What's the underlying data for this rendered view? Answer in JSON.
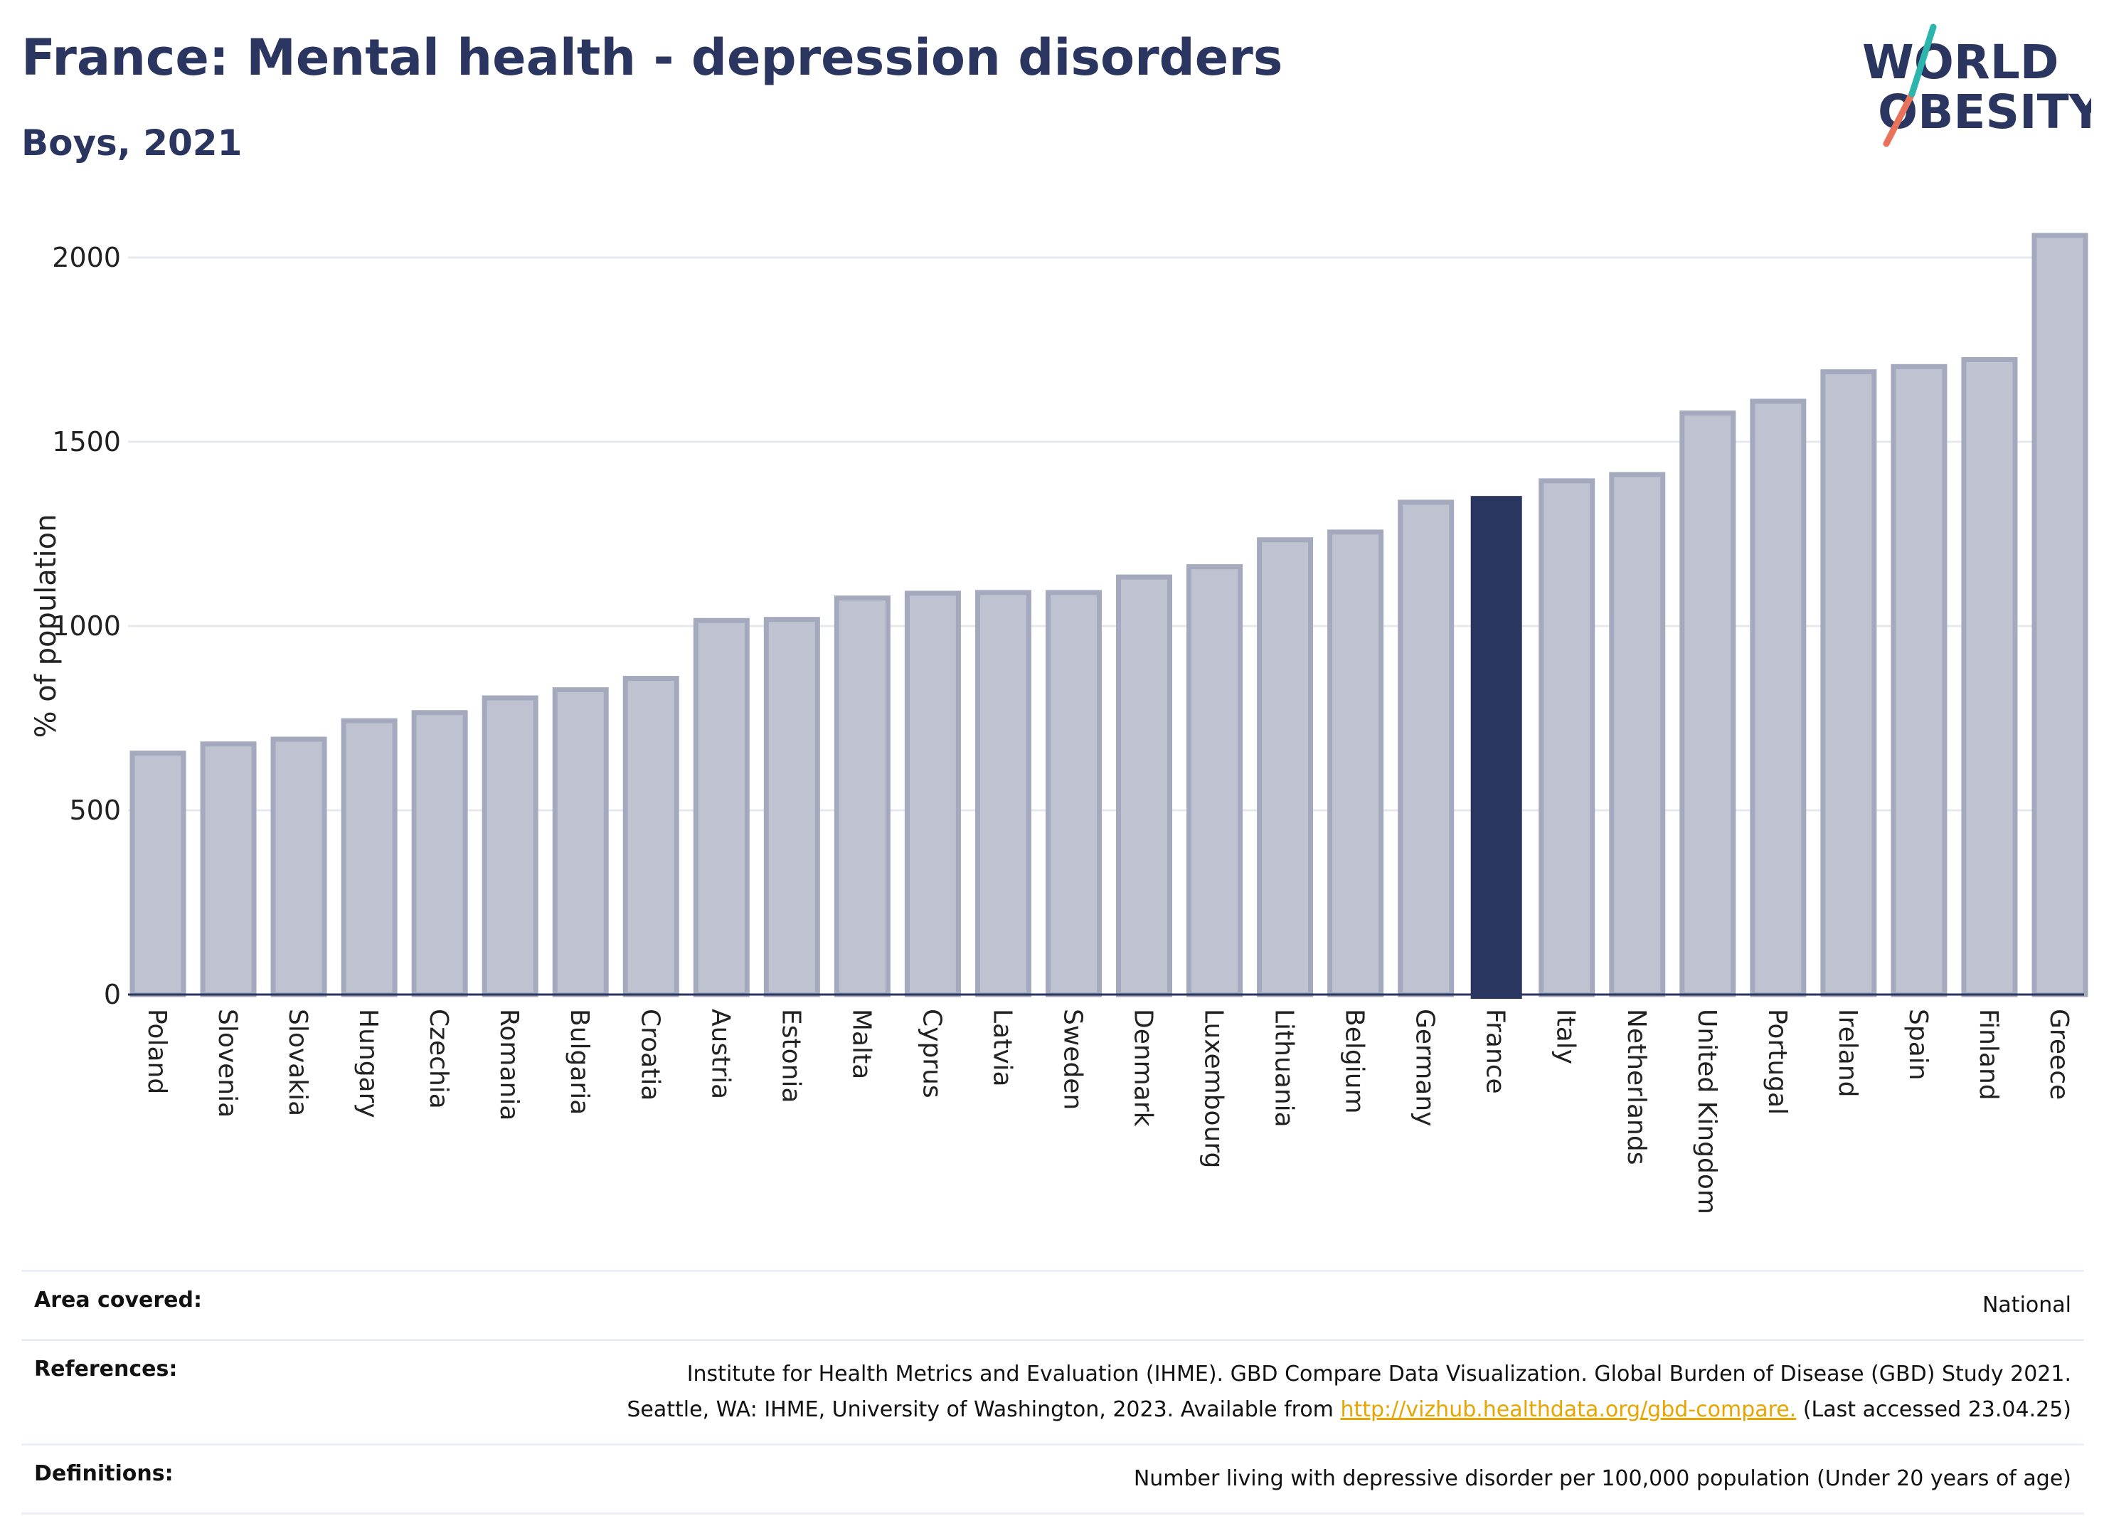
{
  "header": {
    "title": "France: Mental health - depression disorders",
    "subtitle": "Boys, 2021"
  },
  "logo": {
    "line1": "WORLD",
    "line2": "OBESITY"
  },
  "chart_data": {
    "type": "bar",
    "title": "France: Mental health - depression disorders",
    "subtitle": "Boys, 2021",
    "ylabel": "% of population",
    "xlabel": "",
    "ylim": [
      0,
      2100
    ],
    "yticks": [
      0,
      500,
      1000,
      1500,
      2000
    ],
    "grid": true,
    "highlight": "France",
    "colors": {
      "bar": "#bfc3d1",
      "bar_edge": "#a4a9be",
      "highlight": "#2a3560",
      "axis": "#2a3560",
      "grid": "#e6e8ef"
    },
    "categories": [
      "Poland",
      "Slovenia",
      "Slovakia",
      "Hungary",
      "Czechia",
      "Romania",
      "Bulgaria",
      "Croatia",
      "Austria",
      "Estonia",
      "Malta",
      "Cyprus",
      "Latvia",
      "Sweden",
      "Denmark",
      "Luxembourg",
      "Lithuania",
      "Belgium",
      "Germany",
      "France",
      "Italy",
      "Netherlands",
      "United Kingdom",
      "Portugal",
      "Ireland",
      "Spain",
      "Finland",
      "Greece"
    ],
    "values": [
      655,
      680,
      693,
      743,
      765,
      805,
      827,
      858,
      1015,
      1018,
      1076,
      1089,
      1091,
      1091,
      1133,
      1161,
      1234,
      1255,
      1336,
      1353,
      1394,
      1411,
      1578,
      1610,
      1690,
      1704,
      1723,
      2060
    ]
  },
  "footer": {
    "area_label": "Area covered:",
    "area_value": "National",
    "references_label": "References:",
    "references_line1": "Institute for Health Metrics and Evaluation (IHME). GBD Compare Data Visualization. Global Burden of Disease (GBD) Study 2021.",
    "references_line2_pre": "Seattle, WA: IHME, University of Washington, 2023. Available from ",
    "references_link": "http://vizhub.healthdata.org/gbd-compare.",
    "references_line2_post": " (Last accessed 23.04.25)",
    "definitions_label": "Definitions:",
    "definitions_value": "Number living with depressive disorder per 100,000 population (Under 20 years of age)"
  }
}
